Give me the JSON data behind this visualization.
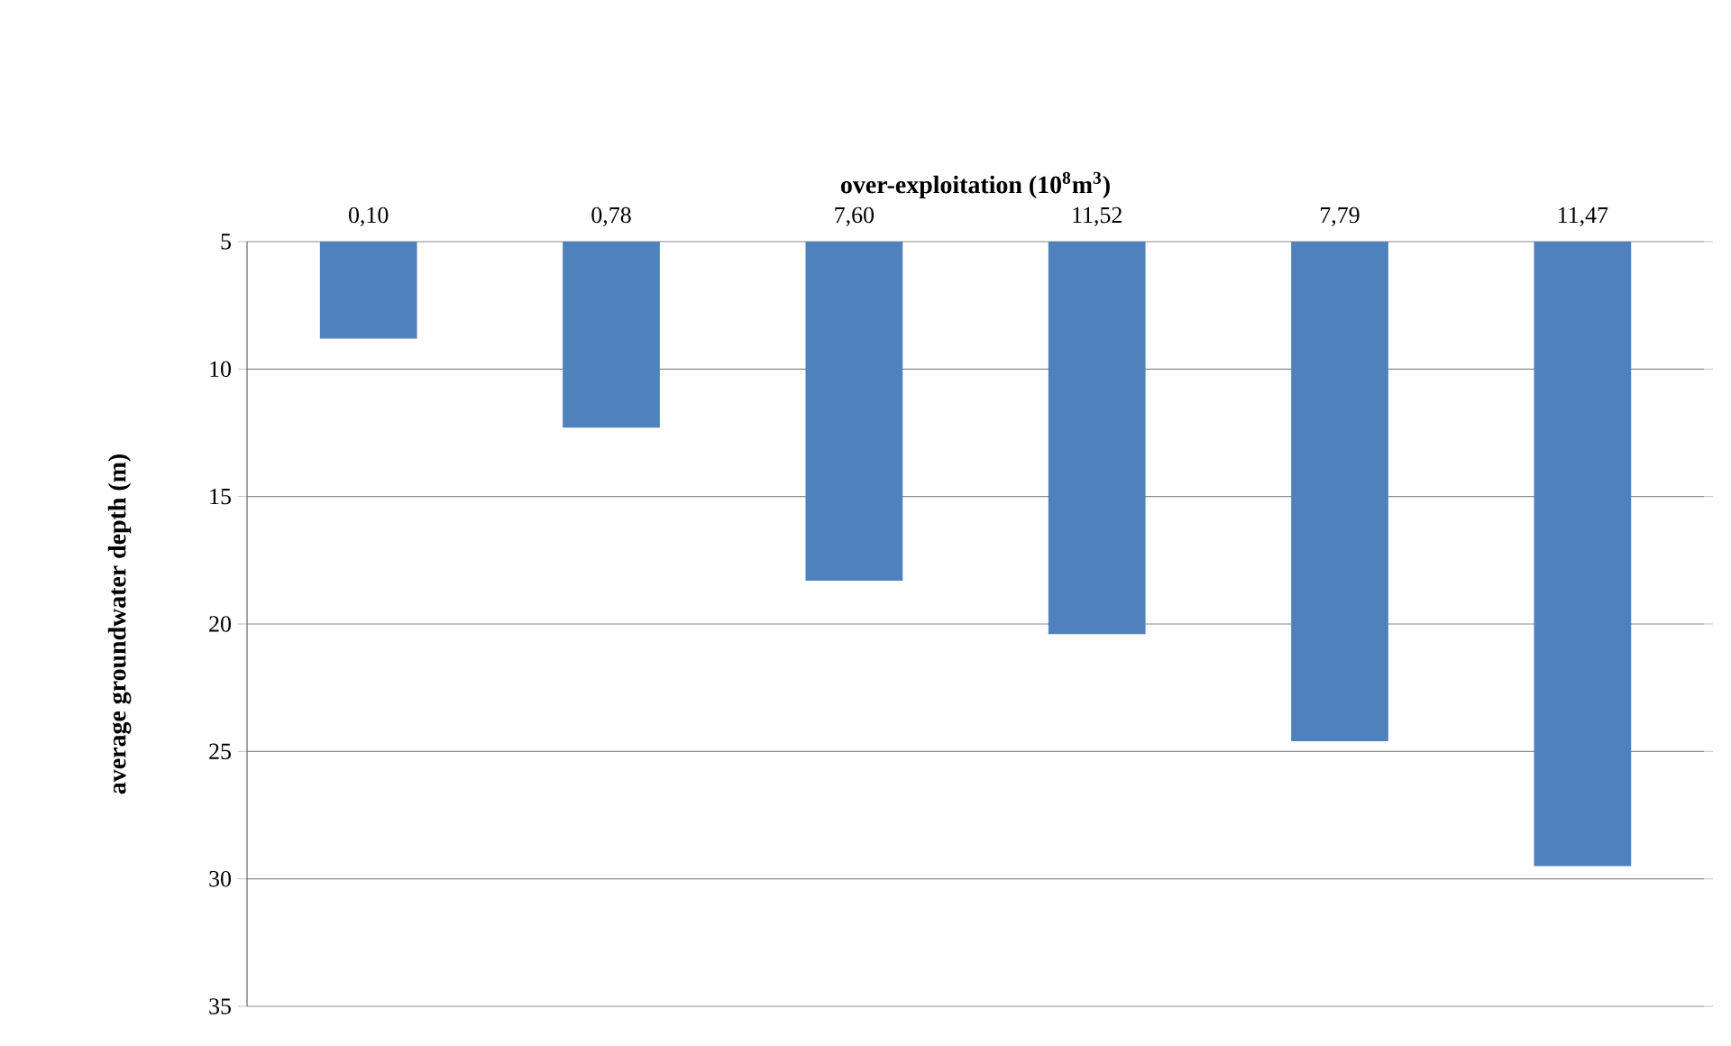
{
  "chart_data": {
    "type": "bar",
    "xlabel": "over-exploitation (10$^{8}$m$^{3}$)",
    "ylabel": "average groundwater depth (m)",
    "categories": [
      "0,10",
      "0,78",
      "7,60",
      "11,52",
      "7,79",
      "11,47"
    ],
    "values": [
      8.8,
      12.3,
      18.3,
      20.4,
      24.6,
      29.5
    ],
    "color": "#4f81bd",
    "ylim": [
      35,
      5
    ],
    "yticks": [
      5,
      10,
      15,
      20,
      25,
      30,
      35
    ],
    "grid": "y"
  }
}
